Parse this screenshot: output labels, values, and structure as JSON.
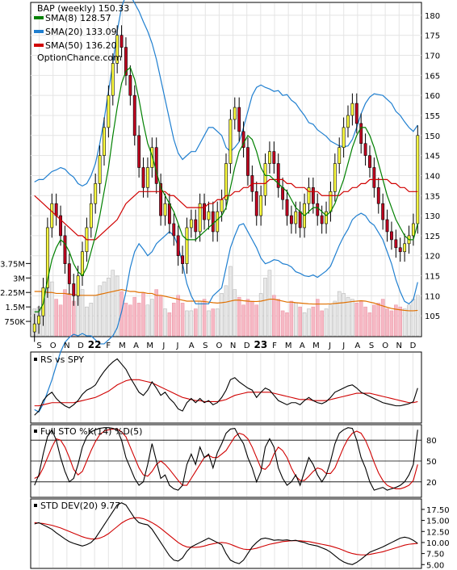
{
  "chart_data": {
    "type": "candlestick",
    "title": "BAP (weekly) 150.33",
    "legend": [
      {
        "label": "SMA(8) 128.57",
        "color": "#008000"
      },
      {
        "label": "SMA(20) 133.09",
        "color": "#1f7fd0"
      },
      {
        "label": "SMA(50) 136.20",
        "color": "#d00000"
      }
    ],
    "watermark": "OptionChance.com",
    "price_axis": {
      "ticks": [
        105,
        110,
        115,
        120,
        125,
        130,
        135,
        140,
        145,
        150,
        155,
        160,
        165,
        170,
        175,
        180
      ],
      "range": [
        100,
        183
      ]
    },
    "volume_axis": {
      "ticks": [
        "750K",
        "1.5M",
        "2.25M",
        "3M",
        "3.75M"
      ],
      "values": [
        0.75,
        1.5,
        2.25,
        3,
        3.75
      ],
      "range": [
        0,
        4.1
      ]
    },
    "x_month_labels": [
      "S",
      "O",
      "N",
      "D",
      "22",
      "F",
      "M",
      "A",
      "M",
      "J",
      "J",
      "A",
      "S",
      "O",
      "N",
      "D",
      "23",
      "F",
      "M",
      "A",
      "M",
      "J",
      "J",
      "A",
      "S",
      "O",
      "N",
      "D"
    ],
    "x_month_bold": [
      4,
      16
    ],
    "panels": {
      "rs": {
        "title": "RS vs SPY"
      },
      "sto": {
        "title": "Full STO %K(14) %D(5)",
        "ticks": [
          20,
          50,
          80
        ],
        "range": [
          0,
          100
        ]
      },
      "std": {
        "title": "STD DEV(20) 9.77",
        "ticks": [
          5.0,
          7.5,
          10.0,
          12.5,
          15.0,
          17.5
        ],
        "tick_labels": [
          "5.00",
          "7.50",
          "10.00",
          "12.50",
          "15.00",
          "17.50"
        ],
        "range": [
          4.5,
          19.5
        ]
      }
    },
    "close": [
      103,
      105,
      112,
      127,
      133,
      130,
      125,
      118,
      113,
      110,
      115,
      121,
      127,
      133,
      138,
      145,
      152,
      160,
      168,
      175,
      172,
      165,
      160,
      150,
      142,
      137,
      142,
      147,
      138,
      130,
      133,
      128,
      125,
      120,
      118,
      127,
      129,
      126,
      133,
      129,
      131,
      126,
      131,
      134,
      143,
      154,
      157,
      151,
      147,
      140,
      136,
      130,
      135,
      143,
      146,
      143,
      137,
      134,
      130,
      128,
      131,
      127,
      133,
      137,
      133,
      130,
      128,
      131,
      136,
      143,
      147,
      152,
      155,
      158,
      153,
      148,
      145,
      142,
      137,
      133,
      129,
      126,
      124,
      122,
      121,
      123,
      125,
      128,
      150
    ],
    "sma8": [
      106,
      106,
      108,
      114,
      119,
      122,
      124,
      123,
      121,
      118,
      116,
      115,
      117,
      121,
      125,
      130,
      136,
      142,
      150,
      157,
      163,
      166,
      167,
      164,
      159,
      153,
      148,
      145,
      141,
      137,
      135,
      133,
      131,
      128,
      125,
      124,
      124,
      124,
      125,
      126,
      127,
      128,
      129,
      130,
      132,
      137,
      142,
      146,
      148,
      150,
      149,
      146,
      142,
      140,
      140,
      139,
      138,
      137,
      136,
      134,
      132,
      131,
      130,
      131,
      132,
      132,
      131,
      130,
      131,
      133,
      136,
      139,
      143,
      147,
      150,
      152,
      152,
      150,
      147,
      143,
      139,
      135,
      132,
      129,
      127,
      125,
      124,
      124,
      128
    ],
    "sma20": [
      110,
      110,
      111,
      113,
      115,
      117,
      119,
      120,
      120,
      120,
      119,
      119,
      119,
      120,
      121,
      123,
      126,
      130,
      134,
      139,
      144,
      148,
      151,
      152,
      152,
      150,
      148,
      147,
      146,
      144,
      142,
      140,
      137,
      134,
      131,
      129,
      128,
      127,
      128,
      129,
      130,
      131,
      131,
      131,
      132,
      134,
      136,
      138,
      140,
      141,
      142,
      142,
      141,
      140,
      140,
      140,
      140,
      139,
      139,
      138,
      137,
      136,
      135,
      134,
      134,
      133,
      133,
      133,
      133,
      134,
      135,
      136,
      137,
      139,
      141,
      143,
      144,
      144,
      144,
      143,
      142,
      140,
      138,
      135,
      133,
      131,
      130,
      130,
      133
    ],
    "sma50": [
      135,
      134,
      133,
      132,
      131,
      130,
      129,
      128,
      127,
      126,
      125,
      125,
      124,
      124,
      124,
      125,
      126,
      127,
      128,
      129,
      131,
      133,
      134,
      135,
      136,
      136,
      136,
      136,
      136,
      136,
      136,
      135,
      135,
      134,
      133,
      132,
      132,
      132,
      132,
      132,
      133,
      133,
      134,
      134,
      135,
      135,
      136,
      136,
      137,
      137,
      138,
      138,
      138,
      138,
      139,
      139,
      139,
      139,
      138,
      138,
      137,
      137,
      137,
      136,
      136,
      136,
      135,
      135,
      135,
      135,
      135,
      136,
      136,
      137,
      137,
      138,
      138,
      139,
      139,
      139,
      139,
      139,
      138,
      138,
      137,
      137,
      136,
      136,
      136
    ],
    "volume": [
      1.4,
      1.5,
      2.3,
      2.6,
      2.8,
      1.9,
      1.6,
      2.4,
      2.2,
      1.8,
      2.1,
      2.4,
      1.5,
      1.7,
      2.1,
      2.6,
      2.8,
      3.0,
      3.4,
      3.1,
      2.3,
      1.7,
      1.6,
      2.0,
      1.7,
      2.2,
      1.6,
      1.9,
      2.4,
      2.1,
      1.4,
      1.2,
      1.7,
      2.1,
      1.7,
      1.3,
      1.3,
      1.4,
      1.8,
      1.9,
      1.3,
      1.4,
      1.4,
      2.2,
      2.6,
      3.6,
      2.4,
      2.0,
      1.6,
      1.9,
      1.8,
      1.6,
      2.2,
      3.0,
      3.4,
      2.1,
      1.9,
      1.3,
      1.2,
      1.8,
      1.7,
      1.5,
      1.2,
      1.4,
      1.5,
      1.9,
      1.3,
      1.4,
      1.6,
      1.8,
      2.3,
      2.2,
      2.0,
      1.9,
      1.7,
      1.8,
      1.5,
      1.2,
      1.6,
      1.7,
      1.9,
      1.4,
      1.3,
      1.6,
      1.5,
      1.4,
      1.6,
      1.9,
      2.1
    ],
    "avg_volume": [
      2.3,
      2.3,
      2.3,
      2.25,
      2.25,
      2.2,
      2.2,
      2.2,
      2.15,
      2.15,
      2.1,
      2.1,
      2.1,
      2.1,
      2.1,
      2.15,
      2.2,
      2.25,
      2.3,
      2.35,
      2.4,
      2.35,
      2.3,
      2.3,
      2.25,
      2.25,
      2.2,
      2.2,
      2.1,
      2.1,
      2.05,
      2.0,
      1.95,
      1.9,
      1.85,
      1.8,
      1.8,
      1.8,
      1.8,
      1.78,
      1.75,
      1.72,
      1.7,
      1.72,
      1.75,
      1.8,
      1.85,
      1.85,
      1.82,
      1.8,
      1.78,
      1.78,
      1.8,
      1.85,
      1.9,
      1.9,
      1.85,
      1.8,
      1.75,
      1.75,
      1.72,
      1.7,
      1.68,
      1.66,
      1.65,
      1.65,
      1.65,
      1.65,
      1.66,
      1.68,
      1.7,
      1.72,
      1.75,
      1.78,
      1.8,
      1.82,
      1.8,
      1.75,
      1.7,
      1.62,
      1.55,
      1.48,
      1.42,
      1.38,
      1.35,
      1.32,
      1.3,
      1.3,
      1.32
    ],
    "rs": [
      0.86,
      0.9,
      1.0,
      1.05,
      1.08,
      1.02,
      0.98,
      0.95,
      0.93,
      0.96,
      1.0,
      1.06,
      1.1,
      1.12,
      1.15,
      1.22,
      1.28,
      1.33,
      1.37,
      1.4,
      1.35,
      1.3,
      1.22,
      1.15,
      1.08,
      1.05,
      1.1,
      1.18,
      1.12,
      1.05,
      1.08,
      1.02,
      0.98,
      0.92,
      0.9,
      0.98,
      1.02,
      0.98,
      1.02,
      0.98,
      1.0,
      0.96,
      0.98,
      1.03,
      1.1,
      1.2,
      1.22,
      1.18,
      1.15,
      1.12,
      1.1,
      1.03,
      1.08,
      1.12,
      1.1,
      1.05,
      1.0,
      0.98,
      0.96,
      0.98,
      0.98,
      0.96,
      1.0,
      1.03,
      1.0,
      0.98,
      0.97,
      0.99,
      1.03,
      1.08,
      1.1,
      1.12,
      1.14,
      1.15,
      1.12,
      1.08,
      1.06,
      1.04,
      1.02,
      1.0,
      0.98,
      0.97,
      0.96,
      0.95,
      0.95,
      0.96,
      0.97,
      0.99,
      1.12
    ],
    "rs_ma": [
      0.95,
      0.95,
      0.96,
      0.97,
      0.98,
      0.98,
      0.98,
      0.98,
      0.98,
      0.98,
      0.99,
      1.0,
      1.01,
      1.02,
      1.03,
      1.05,
      1.07,
      1.09,
      1.12,
      1.15,
      1.17,
      1.19,
      1.2,
      1.2,
      1.2,
      1.19,
      1.18,
      1.17,
      1.15,
      1.13,
      1.11,
      1.09,
      1.07,
      1.05,
      1.03,
      1.02,
      1.01,
      1.0,
      1.0,
      0.99,
      0.99,
      0.99,
      0.99,
      1.0,
      1.01,
      1.03,
      1.05,
      1.06,
      1.07,
      1.08,
      1.08,
      1.08,
      1.08,
      1.08,
      1.08,
      1.07,
      1.06,
      1.05,
      1.04,
      1.03,
      1.02,
      1.01,
      1.01,
      1.01,
      1.0,
      1.0,
      1.0,
      1.0,
      1.01,
      1.02,
      1.03,
      1.04,
      1.05,
      1.06,
      1.07,
      1.07,
      1.07,
      1.07,
      1.06,
      1.05,
      1.04,
      1.03,
      1.02,
      1.01,
      1.0,
      0.99,
      0.98,
      0.98,
      0.99
    ],
    "sto_k": [
      15,
      30,
      60,
      85,
      95,
      80,
      55,
      35,
      20,
      25,
      45,
      70,
      85,
      92,
      95,
      97,
      98,
      98,
      97,
      95,
      80,
      55,
      40,
      25,
      15,
      20,
      45,
      75,
      50,
      25,
      30,
      15,
      10,
      8,
      15,
      45,
      60,
      45,
      70,
      55,
      60,
      40,
      62,
      75,
      90,
      96,
      97,
      85,
      75,
      55,
      40,
      20,
      35,
      70,
      82,
      70,
      40,
      25,
      15,
      20,
      30,
      15,
      35,
      55,
      45,
      30,
      20,
      30,
      50,
      75,
      90,
      95,
      98,
      97,
      80,
      55,
      40,
      20,
      8,
      10,
      12,
      8,
      10,
      12,
      15,
      20,
      30,
      45,
      95
    ],
    "sto_d": [
      25,
      28,
      40,
      55,
      70,
      82,
      80,
      70,
      55,
      38,
      30,
      35,
      50,
      65,
      78,
      88,
      93,
      95,
      96,
      96,
      92,
      85,
      70,
      55,
      40,
      30,
      28,
      35,
      45,
      50,
      45,
      38,
      30,
      22,
      15,
      15,
      25,
      35,
      45,
      55,
      58,
      55,
      55,
      60,
      65,
      75,
      85,
      90,
      88,
      82,
      70,
      55,
      40,
      38,
      45,
      60,
      70,
      65,
      55,
      40,
      28,
      22,
      22,
      28,
      35,
      40,
      38,
      32,
      32,
      40,
      55,
      70,
      82,
      90,
      93,
      90,
      80,
      65,
      48,
      33,
      22,
      15,
      12,
      10,
      10,
      12,
      15,
      22,
      45
    ],
    "std": [
      14.2,
      14.5,
      14.0,
      13.5,
      13.0,
      12.2,
      11.5,
      10.8,
      10.2,
      9.8,
      9.5,
      9.2,
      9.5,
      10.0,
      11.0,
      12.5,
      14.0,
      15.5,
      17.0,
      18.5,
      19.0,
      18.5,
      17.0,
      15.5,
      14.5,
      14.2,
      14.0,
      13.0,
      11.5,
      10.0,
      8.5,
      7.0,
      6.0,
      5.8,
      6.5,
      8.0,
      9.0,
      9.5,
      10.0,
      10.5,
      11.0,
      10.5,
      10.0,
      9.5,
      7.5,
      6.0,
      5.5,
      5.2,
      6.0,
      7.5,
      9.0,
      10.0,
      10.8,
      11.0,
      10.8,
      10.5,
      10.6,
      10.5,
      10.6,
      10.4,
      10.5,
      10.2,
      10.0,
      9.6,
      9.4,
      9.2,
      8.8,
      8.4,
      7.8,
      7.0,
      6.2,
      5.6,
      5.2,
      5.0,
      5.5,
      6.2,
      7.0,
      7.8,
      8.2,
      8.6,
      9.0,
      9.5,
      10.0,
      10.5,
      11.0,
      11.2,
      11.0,
      10.5,
      9.8
    ],
    "std_ma": [
      14.5,
      14.4,
      14.3,
      14.1,
      13.9,
      13.6,
      13.3,
      12.9,
      12.5,
      12.1,
      11.7,
      11.3,
      11.0,
      10.8,
      10.8,
      11.0,
      11.4,
      12.0,
      12.8,
      13.6,
      14.4,
      15.0,
      15.4,
      15.6,
      15.6,
      15.4,
      15.0,
      14.5,
      13.9,
      13.2,
      12.4,
      11.6,
      10.8,
      10.0,
      9.4,
      9.0,
      8.9,
      8.9,
      9.0,
      9.2,
      9.5,
      9.7,
      9.9,
      10.0,
      9.9,
      9.6,
      9.2,
      8.8,
      8.5,
      8.4,
      8.5,
      8.7,
      9.0,
      9.3,
      9.6,
      9.8,
      10.0,
      10.2,
      10.3,
      10.4,
      10.4,
      10.4,
      10.3,
      10.2,
      10.0,
      9.8,
      9.6,
      9.4,
      9.2,
      8.9,
      8.6,
      8.2,
      7.8,
      7.5,
      7.3,
      7.2,
      7.2,
      7.3,
      7.5,
      7.7,
      7.9,
      8.2,
      8.5,
      8.8,
      9.1,
      9.4,
      9.6,
      9.7,
      9.8
    ]
  }
}
